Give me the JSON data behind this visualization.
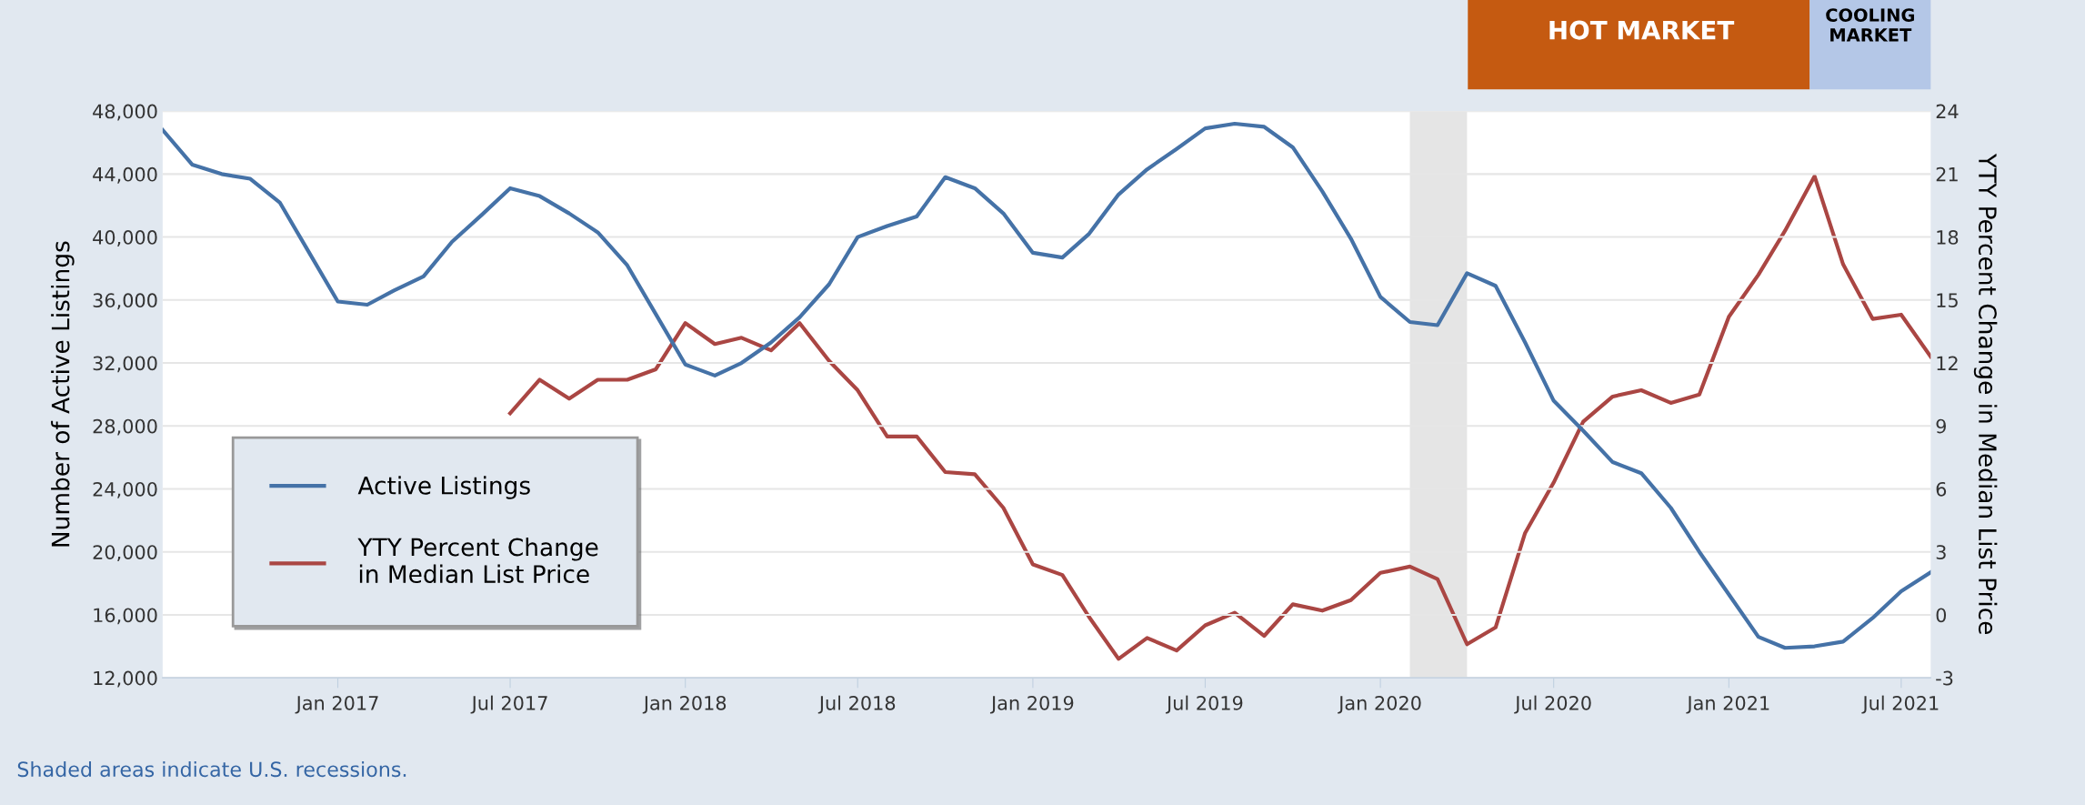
{
  "chart_data": {
    "type": "line",
    "xlabel": null,
    "ylabel": "Number of Active Listings",
    "y2label": "YTY Percent Change in Median List Price",
    "x": [
      "2016-07",
      "2016-08",
      "2016-09",
      "2016-10",
      "2016-11",
      "2016-12",
      "2017-01",
      "2017-02",
      "2017-03",
      "2017-04",
      "2017-05",
      "2017-06",
      "2017-07",
      "2017-08",
      "2017-09",
      "2017-10",
      "2017-11",
      "2017-12",
      "2018-01",
      "2018-02",
      "2018-03",
      "2018-04",
      "2018-05",
      "2018-06",
      "2018-07",
      "2018-08",
      "2018-09",
      "2018-10",
      "2018-11",
      "2018-12",
      "2019-01",
      "2019-02",
      "2019-03",
      "2019-04",
      "2019-05",
      "2019-06",
      "2019-07",
      "2019-08",
      "2019-09",
      "2019-10",
      "2019-11",
      "2019-12",
      "2020-01",
      "2020-02",
      "2020-03",
      "2020-04",
      "2020-05",
      "2020-06",
      "2020-07",
      "2020-08",
      "2020-09",
      "2020-10",
      "2020-11",
      "2020-12",
      "2021-01",
      "2021-02",
      "2021-03",
      "2021-04",
      "2021-05",
      "2021-06",
      "2021-07",
      "2021-08"
    ],
    "series": [
      {
        "name": "Active Listings",
        "color": "#4572a7",
        "values": [
          46800,
          44600,
          44000,
          43700,
          42200,
          39100,
          35900,
          35700,
          36600,
          37500,
          39700,
          41400,
          43100,
          42600,
          41500,
          40300,
          38200,
          35100,
          31900,
          31200,
          32000,
          33300,
          34900,
          37000,
          40000,
          40700,
          41300,
          43800,
          43100,
          41500,
          39000,
          38700,
          40200,
          42700,
          44300,
          45600,
          46900,
          47200,
          47000,
          45700,
          42900,
          39900,
          36200,
          34600,
          34400,
          37700,
          36900,
          33300,
          29600,
          27700,
          25700,
          25000,
          22800,
          20000,
          17300,
          14600,
          13900,
          14000,
          14300,
          15800,
          17500,
          18700
        ]
      },
      {
        "name": "YTY Percent Change\nin Median List Price",
        "color": "#aa4643",
        "axis": "y2",
        "values": [
          null,
          null,
          null,
          null,
          null,
          null,
          null,
          null,
          null,
          null,
          null,
          null,
          9.6,
          11.2,
          10.3,
          11.2,
          11.2,
          11.7,
          13.9,
          12.9,
          13.2,
          12.6,
          13.9,
          12.1,
          10.7,
          8.5,
          8.5,
          6.8,
          6.7,
          5.1,
          2.4,
          1.9,
          -0.1,
          -2.1,
          -1.1,
          -1.7,
          -0.5,
          0.1,
          -1.0,
          0.5,
          0.2,
          0.7,
          2.0,
          2.3,
          1.7,
          -1.4,
          -0.6,
          3.9,
          6.3,
          9.2,
          10.4,
          10.7,
          10.1,
          10.5,
          14.2,
          16.2,
          18.3,
          20.9,
          16.7,
          14.1,
          14.3,
          12.3
        ]
      }
    ],
    "xlim": [
      "2016-07",
      "2021-08"
    ],
    "xticks": [
      {
        "value": "2017-01",
        "label": "Jan 2017"
      },
      {
        "value": "2017-07",
        "label": "Jul 2017"
      },
      {
        "value": "2018-01",
        "label": "Jan 2018"
      },
      {
        "value": "2018-07",
        "label": "Jul 2018"
      },
      {
        "value": "2019-01",
        "label": "Jan 2019"
      },
      {
        "value": "2019-07",
        "label": "Jul 2019"
      },
      {
        "value": "2020-01",
        "label": "Jan 2020"
      },
      {
        "value": "2020-07",
        "label": "Jul 2020"
      },
      {
        "value": "2021-01",
        "label": "Jan 2021"
      },
      {
        "value": "2021-07",
        "label": "Jul 2021"
      }
    ],
    "ylim": [
      12000,
      48000
    ],
    "yticks": [
      {
        "value": 12000,
        "label": "12,000"
      },
      {
        "value": 16000,
        "label": "16,000"
      },
      {
        "value": 20000,
        "label": "20,000"
      },
      {
        "value": 24000,
        "label": "24,000"
      },
      {
        "value": 28000,
        "label": "28,000"
      },
      {
        "value": 32000,
        "label": "32,000"
      },
      {
        "value": 36000,
        "label": "36,000"
      },
      {
        "value": 40000,
        "label": "40,000"
      },
      {
        "value": 44000,
        "label": "44,000"
      },
      {
        "value": 48000,
        "label": "48,000"
      }
    ],
    "y2lim": [
      -3,
      24
    ],
    "y2ticks": [
      -3,
      0,
      3,
      6,
      9,
      12,
      15,
      18,
      21,
      24
    ],
    "bands": [
      {
        "axis": "x",
        "from": "2020-02",
        "to": "2020-04",
        "color": "#e5e5e5"
      }
    ],
    "grid": "y",
    "legend": "bottom left",
    "marker": "none",
    "line_style": "solid",
    "annotations": [
      "Shaded areas indicate U.S. recessions.",
      "HOT MARKET",
      "COOLING MARKET"
    ]
  }
}
